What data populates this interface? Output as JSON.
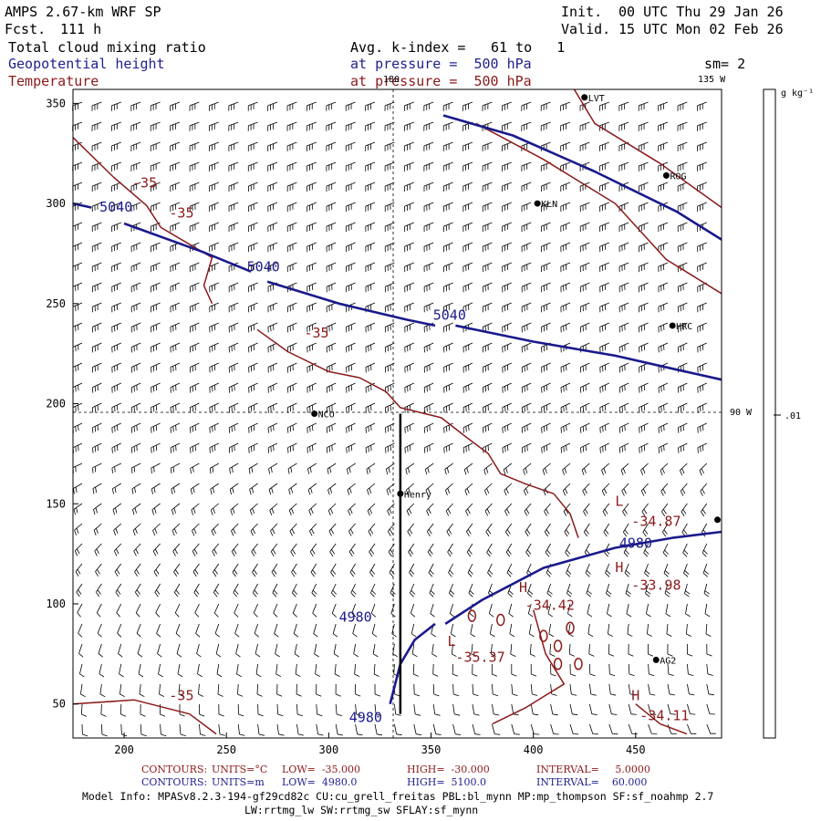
{
  "header": {
    "model": "AMPS 2.67-km WRF SP",
    "forecast_label": "Fcst.",
    "forecast_hours": "111 h",
    "init_label": "Init.",
    "init_time": "00 UTC Thu 29 Jan 26",
    "valid_label": "Valid.",
    "valid_time": "15 UTC Mon 02 Feb 26",
    "field1": "Total cloud mixing ratio",
    "field2": "Geopotential height",
    "field3": "Temperature",
    "avg_label": "Avg. k-index =",
    "avg_range": "61 to   1",
    "pressure1": "at pressure =  500 hPa",
    "pressure2": "at pressure =  500 hPa",
    "smoothing": "sm= 2"
  },
  "colorbar": {
    "units": "g kg⁻¹",
    "tick_value": ".01"
  },
  "chart_data": {
    "type": "contour",
    "x_ticks": [
      200,
      250,
      300,
      350,
      400,
      450
    ],
    "y_ticks": [
      50,
      100,
      150,
      200,
      250,
      300,
      350
    ],
    "xlim": [
      175,
      492
    ],
    "ylim": [
      33,
      357
    ],
    "meridians": [
      {
        "label": "180",
        "position": "top"
      },
      {
        "label": "135 W",
        "position": "top-right"
      },
      {
        "label": "90 W",
        "position": "right"
      }
    ],
    "stations": [
      {
        "name": "LVT",
        "x": 425,
        "y": 353
      },
      {
        "name": "ROG",
        "x": 465,
        "y": 314
      },
      {
        "name": "KLN",
        "x": 402,
        "y": 300
      },
      {
        "name": "HRC",
        "x": 468,
        "y": 239
      },
      {
        "name": "NCO",
        "x": 293,
        "y": 195
      },
      {
        "name": "Henry",
        "x": 335,
        "y": 155
      },
      {
        "name": "AG2",
        "x": 460,
        "y": 72
      },
      {
        "name": "",
        "x": 490,
        "y": 142
      }
    ],
    "height_labels": [
      {
        "text": "5040",
        "x": 188,
        "y": 296
      },
      {
        "text": "5040",
        "x": 260,
        "y": 266
      },
      {
        "text": "5040",
        "x": 351,
        "y": 242
      },
      {
        "text": "4980",
        "x": 442,
        "y": 128
      },
      {
        "text": "4980",
        "x": 305,
        "y": 91
      },
      {
        "text": "4980",
        "x": 310,
        "y": 41
      }
    ],
    "temp_labels": [
      {
        "text": "-35",
        "x": 204,
        "y": 308
      },
      {
        "text": "-35",
        "x": 222,
        "y": 293
      },
      {
        "text": "-35",
        "x": 288,
        "y": 233
      },
      {
        "text": "-35",
        "x": 222,
        "y": 52
      },
      {
        "text": "L",
        "x": 440,
        "y": 149
      },
      {
        "text": "-34.87",
        "x": 448,
        "y": 139
      },
      {
        "text": "H",
        "x": 440,
        "y": 116
      },
      {
        "text": "-33.98",
        "x": 448,
        "y": 107
      },
      {
        "text": "H",
        "x": 393,
        "y": 106
      },
      {
        "text": "-34.42",
        "x": 396,
        "y": 97
      },
      {
        "text": "L",
        "x": 358,
        "y": 79
      },
      {
        "text": "-35.37",
        "x": 362,
        "y": 71
      },
      {
        "text": "H",
        "x": 448,
        "y": 52
      },
      {
        "text": "-34.11",
        "x": 452,
        "y": 42
      }
    ],
    "height_contours": [
      [
        [
          175,
          300
        ],
        [
          184,
          298
        ]
      ],
      [
        [
          200,
          290
        ],
        [
          238,
          276
        ],
        [
          262,
          266
        ]
      ],
      [
        [
          270,
          261
        ],
        [
          305,
          250
        ],
        [
          338,
          242
        ],
        [
          352,
          239
        ]
      ],
      [
        [
          362,
          239
        ],
        [
          400,
          231
        ],
        [
          440,
          224
        ],
        [
          470,
          217
        ],
        [
          492,
          212
        ]
      ],
      [
        [
          356,
          344
        ],
        [
          390,
          334
        ],
        [
          430,
          316
        ],
        [
          470,
          296
        ],
        [
          492,
          282
        ]
      ],
      [
        [
          357,
          90
        ],
        [
          375,
          102
        ],
        [
          405,
          118
        ],
        [
          440,
          128
        ],
        [
          468,
          133
        ],
        [
          492,
          136
        ]
      ],
      [
        [
          330,
          50
        ],
        [
          335,
          70
        ],
        [
          342,
          82
        ],
        [
          352,
          90
        ]
      ]
    ],
    "temperature_contours": [
      [
        [
          175,
          333
        ],
        [
          195,
          313
        ],
        [
          211,
          299
        ],
        [
          218,
          288
        ],
        [
          243,
          273
        ],
        [
          239,
          259
        ],
        [
          243,
          250
        ]
      ],
      [
        [
          265,
          237
        ],
        [
          280,
          226
        ],
        [
          300,
          216
        ],
        [
          315,
          213
        ],
        [
          328,
          206
        ],
        [
          335,
          198
        ],
        [
          355,
          193
        ],
        [
          365,
          185
        ],
        [
          378,
          175
        ],
        [
          384,
          165
        ],
        [
          396,
          160
        ],
        [
          410,
          155
        ],
        [
          418,
          145
        ],
        [
          422,
          133
        ]
      ],
      [
        [
          372,
          340
        ],
        [
          405,
          322
        ],
        [
          440,
          300
        ],
        [
          465,
          272
        ],
        [
          492,
          255
        ]
      ],
      [
        [
          420,
          357
        ],
        [
          430,
          340
        ],
        [
          462,
          320
        ],
        [
          492,
          298
        ]
      ],
      [
        [
          400,
          97
        ],
        [
          406,
          75
        ],
        [
          415,
          60
        ],
        [
          396,
          48
        ],
        [
          380,
          40
        ]
      ],
      [
        [
          175,
          50
        ],
        [
          205,
          52
        ],
        [
          232,
          45
        ],
        [
          245,
          35
        ]
      ],
      [
        [
          450,
          50
        ],
        [
          462,
          40
        ],
        [
          475,
          35
        ]
      ]
    ],
    "temp_blobs": [
      {
        "x": 370,
        "y": 94
      },
      {
        "x": 384,
        "y": 92
      },
      {
        "x": 405,
        "y": 84
      },
      {
        "x": 412,
        "y": 79
      },
      {
        "x": 418,
        "y": 88
      },
      {
        "x": 412,
        "y": 70
      },
      {
        "x": 422,
        "y": 70
      }
    ],
    "wind_barbs": {
      "columns": 33,
      "rows": 32,
      "note": "gridded wind barbs, westerly in north, veering southerly in south"
    },
    "section_line": {
      "x": 335,
      "from_y": 45,
      "to_y": 195
    }
  },
  "footer": {
    "contours_label": "CONTOURS:",
    "temp_units": "UNITS=°C",
    "temp_low": "LOW=  -35.000",
    "temp_high": "HIGH=  -30.000",
    "temp_interval": "INTERVAL=     5.0000",
    "hgt_units": "UNITS=m",
    "hgt_low": "LOW=  4980.0",
    "hgt_high": "HIGH=  5100.0",
    "hgt_interval": "INTERVAL=    60.000",
    "model_info": "Model Info: MPASv8.2.3-194-gf29cd82c CU:cu_grell_freitas PBL:bl_mynn MP:mp_thompson SF:sf_noahmp 2.7",
    "model_info2": "LW:rrtmg_lw SW:rrtmg_sw SFLAY:sf_mynn"
  },
  "colors": {
    "height": "#1a1a8c",
    "temperature": "#8b1a1a",
    "text_blue": "#1f1f8f",
    "text_red": "#8b1a1a"
  }
}
